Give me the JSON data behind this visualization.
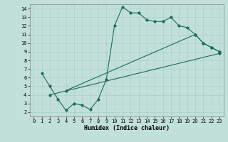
{
  "xlabel": "Humidex (Indice chaleur)",
  "xlim": [
    -0.5,
    23.5
  ],
  "ylim": [
    1.5,
    14.5
  ],
  "xticks": [
    0,
    1,
    2,
    3,
    4,
    5,
    6,
    7,
    8,
    9,
    10,
    11,
    12,
    13,
    14,
    15,
    16,
    17,
    18,
    19,
    20,
    21,
    22,
    23
  ],
  "yticks": [
    2,
    3,
    4,
    5,
    6,
    7,
    8,
    9,
    10,
    11,
    12,
    13,
    14
  ],
  "background_color": "#c2e0da",
  "grid_color": "#aacfc8",
  "line_color": "#1a6b60",
  "line1_x": [
    1,
    2,
    3,
    4,
    5,
    6,
    7,
    8,
    9,
    10,
    11,
    12,
    13,
    14,
    15,
    16,
    17,
    18,
    19,
    20,
    21,
    22,
    23
  ],
  "line1_y": [
    6.5,
    5.0,
    3.5,
    2.2,
    3.0,
    2.8,
    2.3,
    3.5,
    5.8,
    12.0,
    14.2,
    13.5,
    13.5,
    12.7,
    12.5,
    12.5,
    13.0,
    12.0,
    11.8,
    11.0,
    10.0,
    9.5,
    9.0
  ],
  "line2_x": [
    2,
    23
  ],
  "line2_y": [
    4.0,
    8.8
  ],
  "line3_x": [
    4,
    20,
    21,
    22,
    23
  ],
  "line3_y": [
    4.5,
    11.0,
    10.0,
    9.5,
    9.0
  ]
}
